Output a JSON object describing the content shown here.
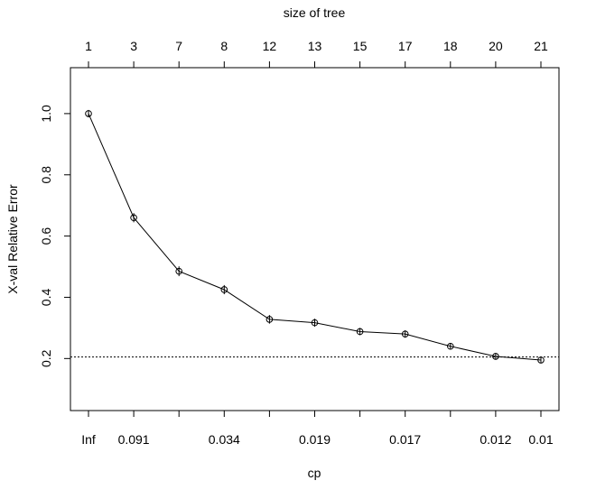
{
  "chart_data": {
    "type": "line",
    "title": "",
    "xlabel": "cp",
    "ylabel": "X-val Relative Error",
    "top_axis_label": "size of tree",
    "top_tick_labels": [
      "1",
      "3",
      "7",
      "8",
      "12",
      "13",
      "15",
      "17",
      "18",
      "20",
      "21"
    ],
    "bottom_tick_labels": [
      "Inf",
      "0.091",
      "",
      "0.034",
      "",
      "0.019",
      "",
      "0.017",
      "",
      "0.012",
      "0.01"
    ],
    "y_ticks": [
      "0.2",
      "0.4",
      "0.6",
      "0.8",
      "1.0"
    ],
    "ylim": [
      0.03,
      1.15
    ],
    "grid": false,
    "reference_line": 0.205,
    "series": [
      {
        "values": [
          1.0,
          0.66,
          0.485,
          0.425,
          0.328,
          0.317,
          0.288,
          0.28,
          0.24,
          0.207,
          0.195
        ],
        "errors": [
          0.012,
          0.015,
          0.016,
          0.015,
          0.014,
          0.013,
          0.012,
          0.012,
          0.011,
          0.011,
          0.01
        ]
      }
    ]
  }
}
